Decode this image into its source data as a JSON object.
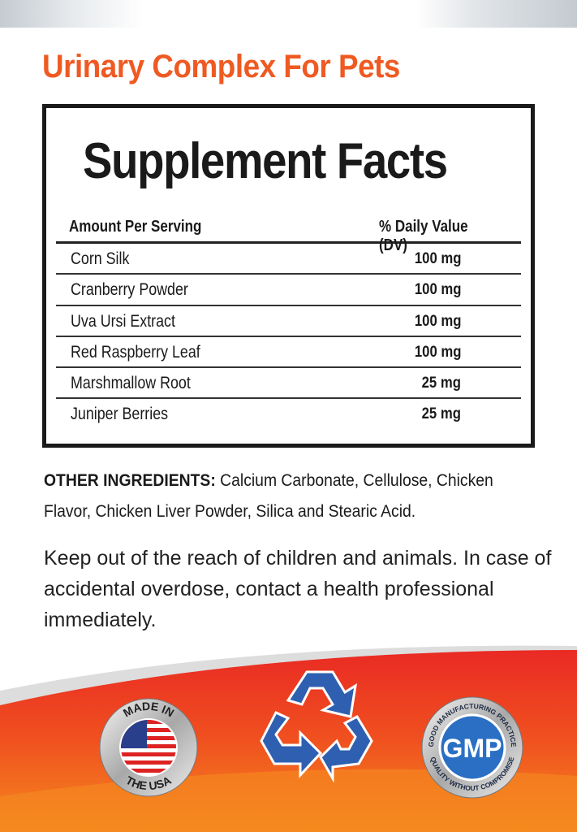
{
  "title": "Urinary Complex For Pets",
  "facts": {
    "heading": "Supplement Facts",
    "col_amount": "Amount  Per Serving",
    "col_dv": "% Daily Value (DV)",
    "rows": [
      {
        "name": "Corn Silk",
        "value": "100 mg"
      },
      {
        "name": "Cranberry Powder",
        "value": "100 mg"
      },
      {
        "name": "Uva Ursi Extract",
        "value": "100 mg"
      },
      {
        "name": "Red Raspberry Leaf",
        "value": "100 mg"
      },
      {
        "name": "Marshmallow Root",
        "value": "25 mg"
      },
      {
        "name": "Juniper Berries",
        "value": "25 mg"
      }
    ]
  },
  "other": {
    "label": "OTHER INGREDIENTS:",
    "text": " Calcium Carbonate, Cellulose, Chicken Flavor, Chicken Liver Powder, Silica and Stearic Acid."
  },
  "warning": "Keep out of the reach of children and animals. In case of accidental overdose, contact a health professional immediately.",
  "badges": {
    "usa_top": "MADE IN",
    "usa_bottom": "THE USA",
    "recycle_icon": "recycle-icon",
    "gmp_center": "GMP",
    "gmp_top": "GOOD MANUFACTURING PRACTICE",
    "gmp_bottom": "QUALITY WITHOUT COMPROMISE"
  },
  "colors": {
    "title": "#ef5a22",
    "footer_red": "#e92a24",
    "footer_orange": "#f47a20",
    "recycle": "#2f5fb0",
    "gmp": "#2a6fc4"
  }
}
